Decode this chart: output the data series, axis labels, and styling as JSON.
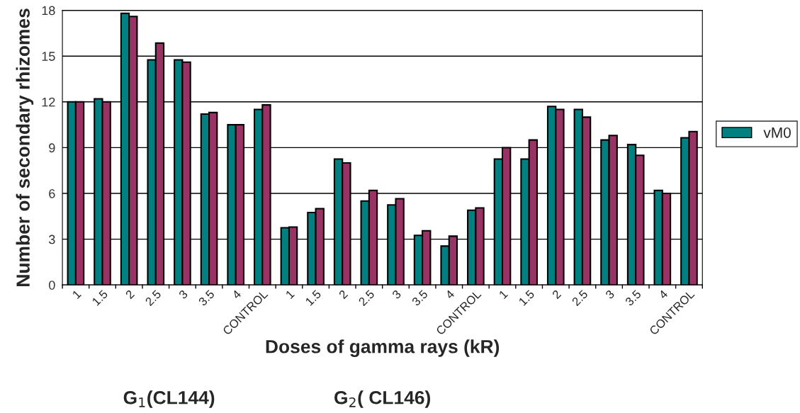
{
  "chart_data": {
    "type": "bar",
    "ylabel": "Number of secondary rhizomes",
    "xlabel": "Doses of gamma rays (kR)",
    "categories": [
      "1",
      "1.5",
      "2",
      "2.5",
      "3",
      "3.5",
      "4",
      "CONTROL",
      "1",
      "1.5",
      "2",
      "2.5",
      "3",
      "3.5",
      "4",
      "CONTROL",
      "1",
      "1.5",
      "2",
      "2.5",
      "3",
      "3.5",
      "4",
      "CONTROL"
    ],
    "series": [
      {
        "name": "vM0",
        "color": "#008080",
        "values": [
          12,
          12.2,
          17.8,
          14.75,
          14.75,
          11.2,
          10.5,
          11.5,
          3.75,
          4.75,
          8.25,
          5.5,
          5.25,
          3.25,
          2.55,
          4.9,
          8.25,
          8.25,
          11.7,
          11.5,
          9.5,
          9.2,
          6.2,
          9.65
        ]
      },
      {
        "color": "#993366",
        "values": [
          12,
          12,
          17.6,
          15.85,
          14.6,
          11.3,
          10.5,
          11.8,
          3.8,
          5,
          8,
          6.2,
          5.65,
          3.55,
          3.2,
          5.05,
          9,
          9.5,
          11.5,
          11,
          9.8,
          8.5,
          6,
          10.05
        ]
      }
    ],
    "ylim": [
      0,
      18
    ],
    "yticks": [
      0,
      3,
      6,
      9,
      12,
      15,
      18
    ],
    "grid": "y",
    "legend": "right",
    "annotations": [
      "G$_{1}$(CL144)",
      "G$_{2}$( CL146)"
    ]
  }
}
